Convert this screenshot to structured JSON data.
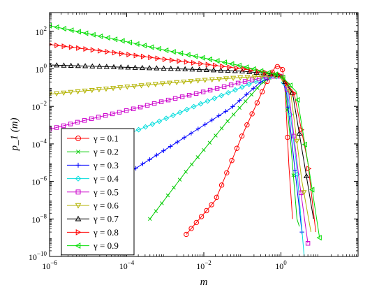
{
  "chart_data": {
    "type": "line",
    "xscale": "log",
    "yscale": "log",
    "xlim": [
      1e-06,
      100
    ],
    "ylim": [
      1e-10,
      1000
    ],
    "xlabel": "m",
    "ylabel": "p_1 (m)",
    "grid": false,
    "legend": {
      "placement": "bottom-left"
    },
    "x_ticks": [
      {
        "value": 1e-06,
        "base": "10",
        "exp": "−6"
      },
      {
        "value": 0.0001,
        "base": "10",
        "exp": "−4"
      },
      {
        "value": 0.01,
        "base": "10",
        "exp": "−2"
      },
      {
        "value": 1,
        "base": "10",
        "exp": "0"
      }
    ],
    "y_ticks": [
      {
        "value": 1e-10,
        "base": "10",
        "exp": "−10"
      },
      {
        "value": 1e-08,
        "base": "10",
        "exp": "−8"
      },
      {
        "value": 1e-06,
        "base": "10",
        "exp": "−6"
      },
      {
        "value": 0.0001,
        "base": "10",
        "exp": "−4"
      },
      {
        "value": 0.01,
        "base": "10",
        "exp": "−2"
      },
      {
        "value": 1,
        "base": "10",
        "exp": "0"
      },
      {
        "value": 100,
        "base": "10",
        "exp": "2"
      }
    ],
    "series": [
      {
        "name": "γ = 0.1",
        "color": "#ff0000",
        "marker": "circle",
        "marker_count": 22,
        "points": [
          [
            0.0035,
            1.5e-09
          ],
          [
            0.02,
            1e-07
          ],
          [
            0.1,
            0.0003
          ],
          [
            0.4,
            0.15
          ],
          [
            0.7,
            1.2
          ],
          [
            0.9,
            1.4
          ],
          [
            1.1,
            0.9
          ],
          [
            1.3,
            0.05
          ],
          [
            1.6,
            8e-06
          ],
          [
            2.0,
            1e-08
          ]
        ]
      },
      {
        "name": "γ = 0.2",
        "color": "#00cc00",
        "marker": "x",
        "marker_count": 26,
        "points": [
          [
            0.0004,
            1e-08
          ],
          [
            0.004,
            5e-06
          ],
          [
            0.04,
            0.0015
          ],
          [
            0.3,
            0.15
          ],
          [
            0.7,
            0.55
          ],
          [
            1.0,
            0.5
          ],
          [
            1.3,
            0.08
          ],
          [
            1.8,
            0.0001
          ],
          [
            2.6,
            1e-08
          ],
          [
            3.0,
            4e-09
          ]
        ]
      },
      {
        "name": "γ = 0.3",
        "color": "#0000ff",
        "marker": "plus",
        "marker_count": 28,
        "points": [
          [
            5e-05,
            1e-06
          ],
          [
            0.0005,
            2e-05
          ],
          [
            0.005,
            0.0004
          ],
          [
            0.05,
            0.008
          ],
          [
            0.3,
            0.2
          ],
          [
            0.7,
            0.45
          ],
          [
            1.0,
            0.45
          ],
          [
            1.4,
            0.05
          ],
          [
            2.2,
            1e-05
          ],
          [
            3.5,
            2e-09
          ]
        ]
      },
      {
        "name": "γ = 0.4",
        "color": "#00dddd",
        "marker": "diamond",
        "marker_count": 34,
        "points": [
          [
            5e-06,
            3e-05
          ],
          [
            5e-05,
            0.00018
          ],
          [
            0.0005,
            0.0012
          ],
          [
            0.005,
            0.009
          ],
          [
            0.05,
            0.06
          ],
          [
            0.4,
            0.35
          ],
          [
            1.0,
            0.4
          ],
          [
            1.5,
            0.05
          ],
          [
            2.5,
            1e-05
          ],
          [
            4.0,
            1e-10
          ]
        ]
      },
      {
        "name": "γ = 0.5",
        "color": "#cc00cc",
        "marker": "square",
        "marker_count": 38,
        "points": [
          [
            1e-06,
            0.0006
          ],
          [
            1e-05,
            0.002
          ],
          [
            0.0001,
            0.006
          ],
          [
            0.001,
            0.02
          ],
          [
            0.01,
            0.06
          ],
          [
            0.1,
            0.2
          ],
          [
            0.5,
            0.4
          ],
          [
            1.0,
            0.4
          ],
          [
            1.6,
            0.05
          ],
          [
            3.0,
            1e-06
          ],
          [
            5.0,
            5e-10
          ]
        ]
      },
      {
        "name": "γ = 0.6",
        "color": "#b3b300",
        "marker": "triangle-down",
        "marker_count": 38,
        "points": [
          [
            1e-06,
            0.045
          ],
          [
            1e-05,
            0.07
          ],
          [
            0.0001,
            0.11
          ],
          [
            0.001,
            0.17
          ],
          [
            0.01,
            0.25
          ],
          [
            0.1,
            0.35
          ],
          [
            0.5,
            0.42
          ],
          [
            1.0,
            0.4
          ],
          [
            1.8,
            0.05
          ],
          [
            3.5,
            1e-06
          ],
          [
            6.0,
            2e-09
          ]
        ]
      },
      {
        "name": "γ = 0.7",
        "color": "#000000",
        "marker": "triangle-up",
        "marker_count": 38,
        "points": [
          [
            1e-06,
            1.6
          ],
          [
            1e-05,
            1.4
          ],
          [
            0.0001,
            1.2
          ],
          [
            0.001,
            1.05
          ],
          [
            0.01,
            0.9
          ],
          [
            0.1,
            0.75
          ],
          [
            0.5,
            0.55
          ],
          [
            1.0,
            0.45
          ],
          [
            2.0,
            0.05
          ],
          [
            4.0,
            1e-05
          ],
          [
            7.0,
            1e-08
          ]
        ]
      },
      {
        "name": "γ = 0.8",
        "color": "#ff0000",
        "marker": "triangle-right",
        "marker_count": 38,
        "points": [
          [
            1e-06,
            20
          ],
          [
            1e-05,
            11
          ],
          [
            0.0001,
            6
          ],
          [
            0.001,
            3.2
          ],
          [
            0.01,
            1.8
          ],
          [
            0.1,
            1.0
          ],
          [
            0.5,
            0.6
          ],
          [
            1.0,
            0.45
          ],
          [
            2.2,
            0.05
          ],
          [
            5.0,
            1e-05
          ],
          [
            8.0,
            2e-09
          ]
        ]
      },
      {
        "name": "γ = 0.9",
        "color": "#00dd00",
        "marker": "triangle-left",
        "marker_count": 38,
        "points": [
          [
            1e-06,
            200
          ],
          [
            1e-05,
            75
          ],
          [
            0.0001,
            28
          ],
          [
            0.001,
            10
          ],
          [
            0.01,
            3.8
          ],
          [
            0.1,
            1.4
          ],
          [
            0.5,
            0.6
          ],
          [
            1.0,
            0.45
          ],
          [
            2.5,
            0.06
          ],
          [
            6.0,
            1e-06
          ],
          [
            10.0,
            1e-09
          ]
        ]
      }
    ]
  }
}
